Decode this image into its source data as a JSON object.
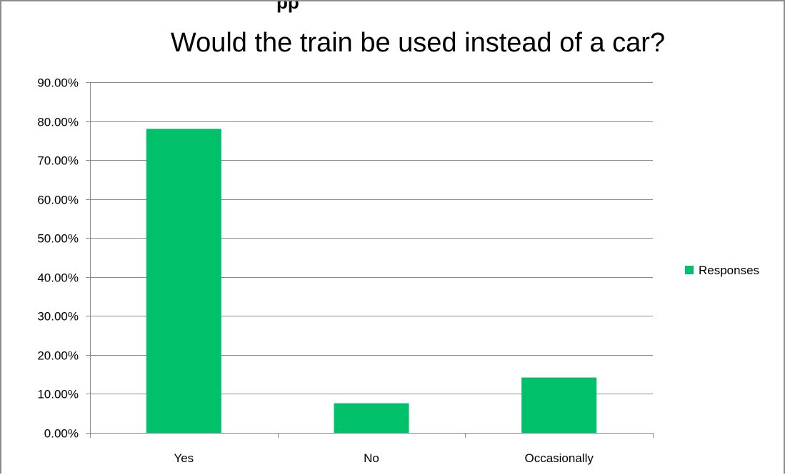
{
  "chart_data": {
    "type": "bar",
    "title": "Would the train be used instead of a car?",
    "clipped_top_text": "pp",
    "categories": [
      "Yes",
      "No",
      "Occasionally"
    ],
    "series": [
      {
        "name": "Responses",
        "values": [
          0.78,
          0.076,
          0.142
        ],
        "color": "#00c06a"
      }
    ],
    "xlabel": "",
    "ylabel": "",
    "ylim": [
      0,
      0.9
    ],
    "yticks": [
      0,
      0.1,
      0.2,
      0.3,
      0.4,
      0.5,
      0.6,
      0.7,
      0.8,
      0.9
    ],
    "ytick_labels": [
      "0.00%",
      "10.00%",
      "20.00%",
      "30.00%",
      "40.00%",
      "50.00%",
      "60.00%",
      "70.00%",
      "80.00%",
      "90.00%"
    ],
    "grid": true,
    "legend_position": "right"
  },
  "colors": {
    "bar": "#00c06a",
    "grid": "#8c8c8c",
    "axis": "#8c8c8c",
    "frame": "#8c8c8c"
  }
}
